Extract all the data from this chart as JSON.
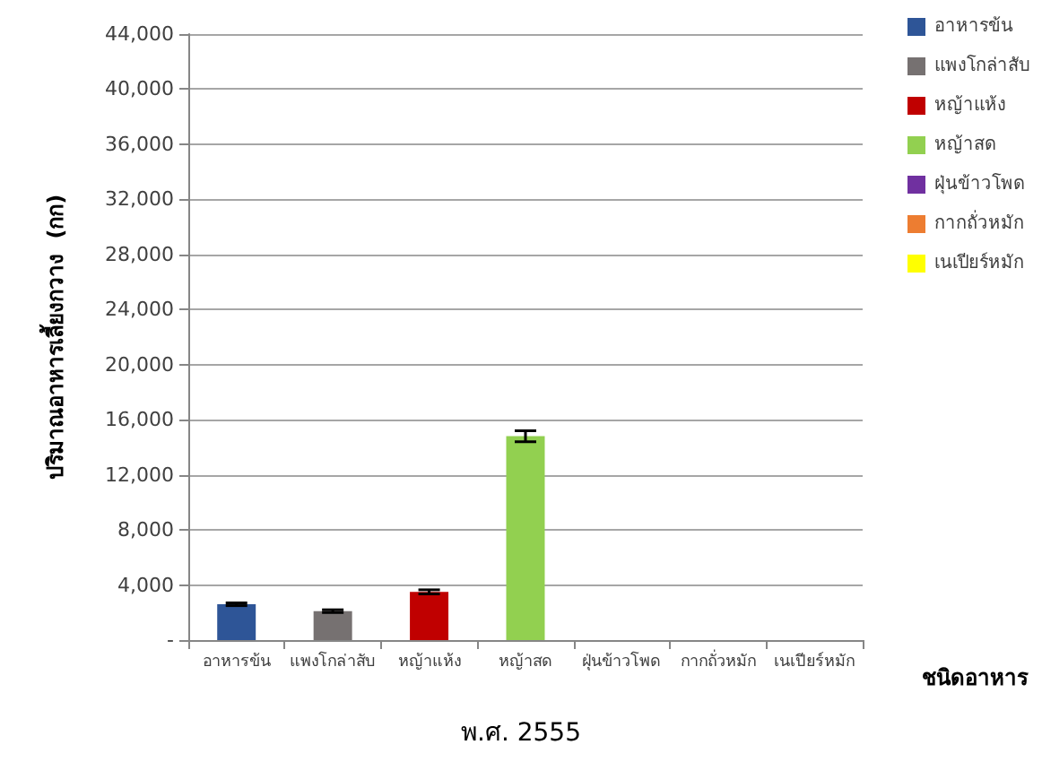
{
  "chart_data": {
    "type": "bar",
    "title": "พ.ศ. 2555",
    "xlabel": "ชนิดอาหาร",
    "ylabel": "ปริมาณอาหารเลี้ยงกวาง  (กก)",
    "categories": [
      "อาหารข้น",
      "แพงโกล่าสับ",
      "หญ้าแห้ง",
      "หญ้าสด",
      "ฝุ่นข้าวโพด",
      "กากถั่วหมัก",
      "เนเปียร์หมัก"
    ],
    "stacked": true,
    "series": [
      {
        "name": "อาหารข้น",
        "color": "#2e5597",
        "values": [
          2600,
          null,
          null,
          null,
          null,
          null,
          null
        ],
        "errors": [
          100,
          null,
          null,
          null,
          null,
          null,
          null
        ]
      },
      {
        "name": "แพงโกล่าสับ",
        "color": "#767171",
        "values": [
          null,
          2100,
          null,
          null,
          null,
          null,
          null
        ],
        "errors": [
          null,
          100,
          null,
          null,
          null,
          null,
          null
        ]
      },
      {
        "name": "หญ้าแห้ง",
        "color": "#c00000",
        "values": [
          null,
          null,
          3500,
          null,
          null,
          null,
          null
        ],
        "errors": [
          null,
          null,
          150,
          null,
          null,
          null,
          null
        ]
      },
      {
        "name": "หญ้าสด",
        "color": "#92d050",
        "values": [
          null,
          null,
          null,
          14800,
          null,
          null,
          null
        ],
        "errors": [
          null,
          null,
          null,
          400,
          null,
          null,
          null
        ]
      },
      {
        "name": "ฝุ่นข้าวโพด",
        "color": "#7030a0",
        "values": [
          null,
          null,
          null,
          null,
          0,
          null,
          null
        ]
      },
      {
        "name": "กากถั่วหมัก",
        "color": "#ed7d31",
        "values": [
          null,
          null,
          null,
          null,
          null,
          0,
          null
        ]
      },
      {
        "name": "เนเปียร์หมัก",
        "color": "#ffff00",
        "values": [
          null,
          null,
          null,
          null,
          null,
          null,
          0
        ]
      }
    ],
    "ylim": [
      0,
      44000
    ],
    "yticks": [
      {
        "value": 0,
        "label": "-"
      },
      {
        "value": 4000,
        "label": "4,000"
      },
      {
        "value": 8000,
        "label": "8,000"
      },
      {
        "value": 12000,
        "label": "12,000"
      },
      {
        "value": 16000,
        "label": "16,000"
      },
      {
        "value": 20000,
        "label": "20,000"
      },
      {
        "value": 24000,
        "label": "24,000"
      },
      {
        "value": 28000,
        "label": "28,000"
      },
      {
        "value": 32000,
        "label": "32,000"
      },
      {
        "value": 36000,
        "label": "36,000"
      },
      {
        "value": 40000,
        "label": "40,000"
      },
      {
        "value": 44000,
        "label": "44,000"
      }
    ],
    "grid": "y",
    "legend": "right"
  }
}
